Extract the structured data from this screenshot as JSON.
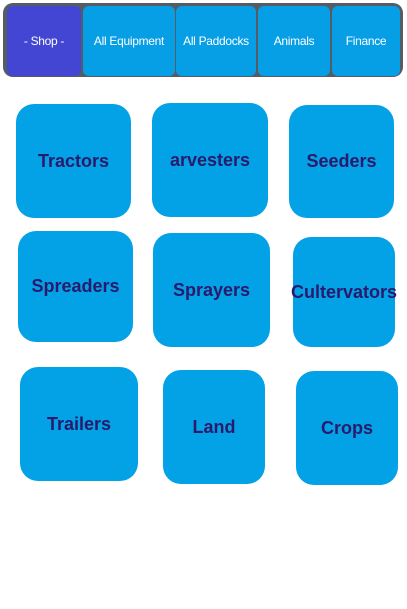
{
  "tabs": [
    {
      "label": "- Shop -"
    },
    {
      "label": "All Equipment"
    },
    {
      "label": "All Paddocks"
    },
    {
      "label": "Animals"
    },
    {
      "label": "Finance"
    }
  ],
  "categories": [
    {
      "label": "Tractors"
    },
    {
      "label": "arvesters"
    },
    {
      "label": "Seeders"
    },
    {
      "label": "Spreaders"
    },
    {
      "label": "Sprayers"
    },
    {
      "label": "Cultervators"
    },
    {
      "label": "Trailers"
    },
    {
      "label": "Land"
    },
    {
      "label": "Crops"
    }
  ],
  "colors": {
    "tab_active": "#4346d2",
    "tab": "#069fe6",
    "tile": "#03a1e6",
    "tile_text": "#2a1a6b",
    "tabbar_border": "#555c66"
  }
}
